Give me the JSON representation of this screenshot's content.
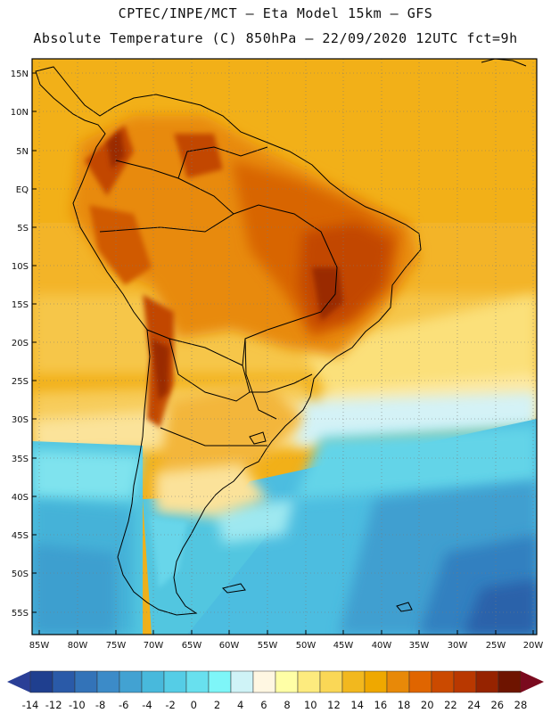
{
  "header": {
    "line1": "CPTEC/INPE/MCT –  Eta Model 15km – GFS",
    "line2": "Absolute Temperature (C) 850hPa – 22/09/2020 12UTC fct=9h"
  },
  "map": {
    "latitude_labels": [
      "15N",
      "10N",
      "5N",
      "EQ",
      "5S",
      "10S",
      "15S",
      "20S",
      "25S",
      "30S",
      "35S",
      "40S",
      "45S",
      "50S",
      "55S"
    ],
    "longitude_labels": [
      "85W",
      "80W",
      "75W",
      "70W",
      "65W",
      "60W",
      "55W",
      "50W",
      "45W",
      "40W",
      "35W",
      "30W",
      "25W",
      "20W"
    ]
  },
  "colorbar": {
    "labels": [
      "-14",
      "-12",
      "-10",
      "-8",
      "-6",
      "-4",
      "-2",
      "0",
      "2",
      "4",
      "6",
      "8",
      "10",
      "12",
      "14",
      "16",
      "18",
      "20",
      "22",
      "24",
      "26",
      "28"
    ],
    "colors": [
      "#1f3f8f",
      "#2a5aa8",
      "#3373b8",
      "#3c8bc8",
      "#42a2d2",
      "#48b9dc",
      "#55cde6",
      "#68e0ee",
      "#7ef6f8",
      "#cff3f7",
      "#fff7e2",
      "#ffffa6",
      "#fdeb7e",
      "#fad756",
      "#f2b81e",
      "#efa800",
      "#e88908",
      "#e06500",
      "#cb4a00",
      "#b93800",
      "#962300",
      "#6e1400"
    ],
    "low_color": "#2a3f96",
    "high_color": "#7a0a1e"
  }
}
